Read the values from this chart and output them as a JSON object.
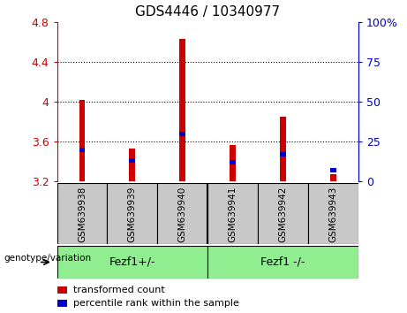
{
  "title": "GDS4446 / 10340977",
  "samples": [
    "GSM639938",
    "GSM639939",
    "GSM639940",
    "GSM639941",
    "GSM639942",
    "GSM639943"
  ],
  "transformed_counts": [
    4.02,
    3.53,
    4.63,
    3.57,
    3.85,
    3.27
  ],
  "percentile_ranks": [
    20,
    13,
    30,
    12,
    17,
    7
  ],
  "ymin": 3.2,
  "ymax": 4.8,
  "yticks": [
    3.2,
    3.6,
    4.0,
    4.4,
    4.8
  ],
  "right_yticks": [
    0,
    25,
    50,
    75,
    100
  ],
  "bar_width": 0.12,
  "red_color": "#cc0000",
  "blue_color": "#0000cc",
  "group1_label": "Fezf1+/-",
  "group2_label": "Fezf1 -/-",
  "group_color": "#90ee90",
  "legend_label1": "transformed count",
  "legend_label2": "percentile rank within the sample",
  "genotype_label": "genotype/variation",
  "sample_bg": "#c8c8c8"
}
